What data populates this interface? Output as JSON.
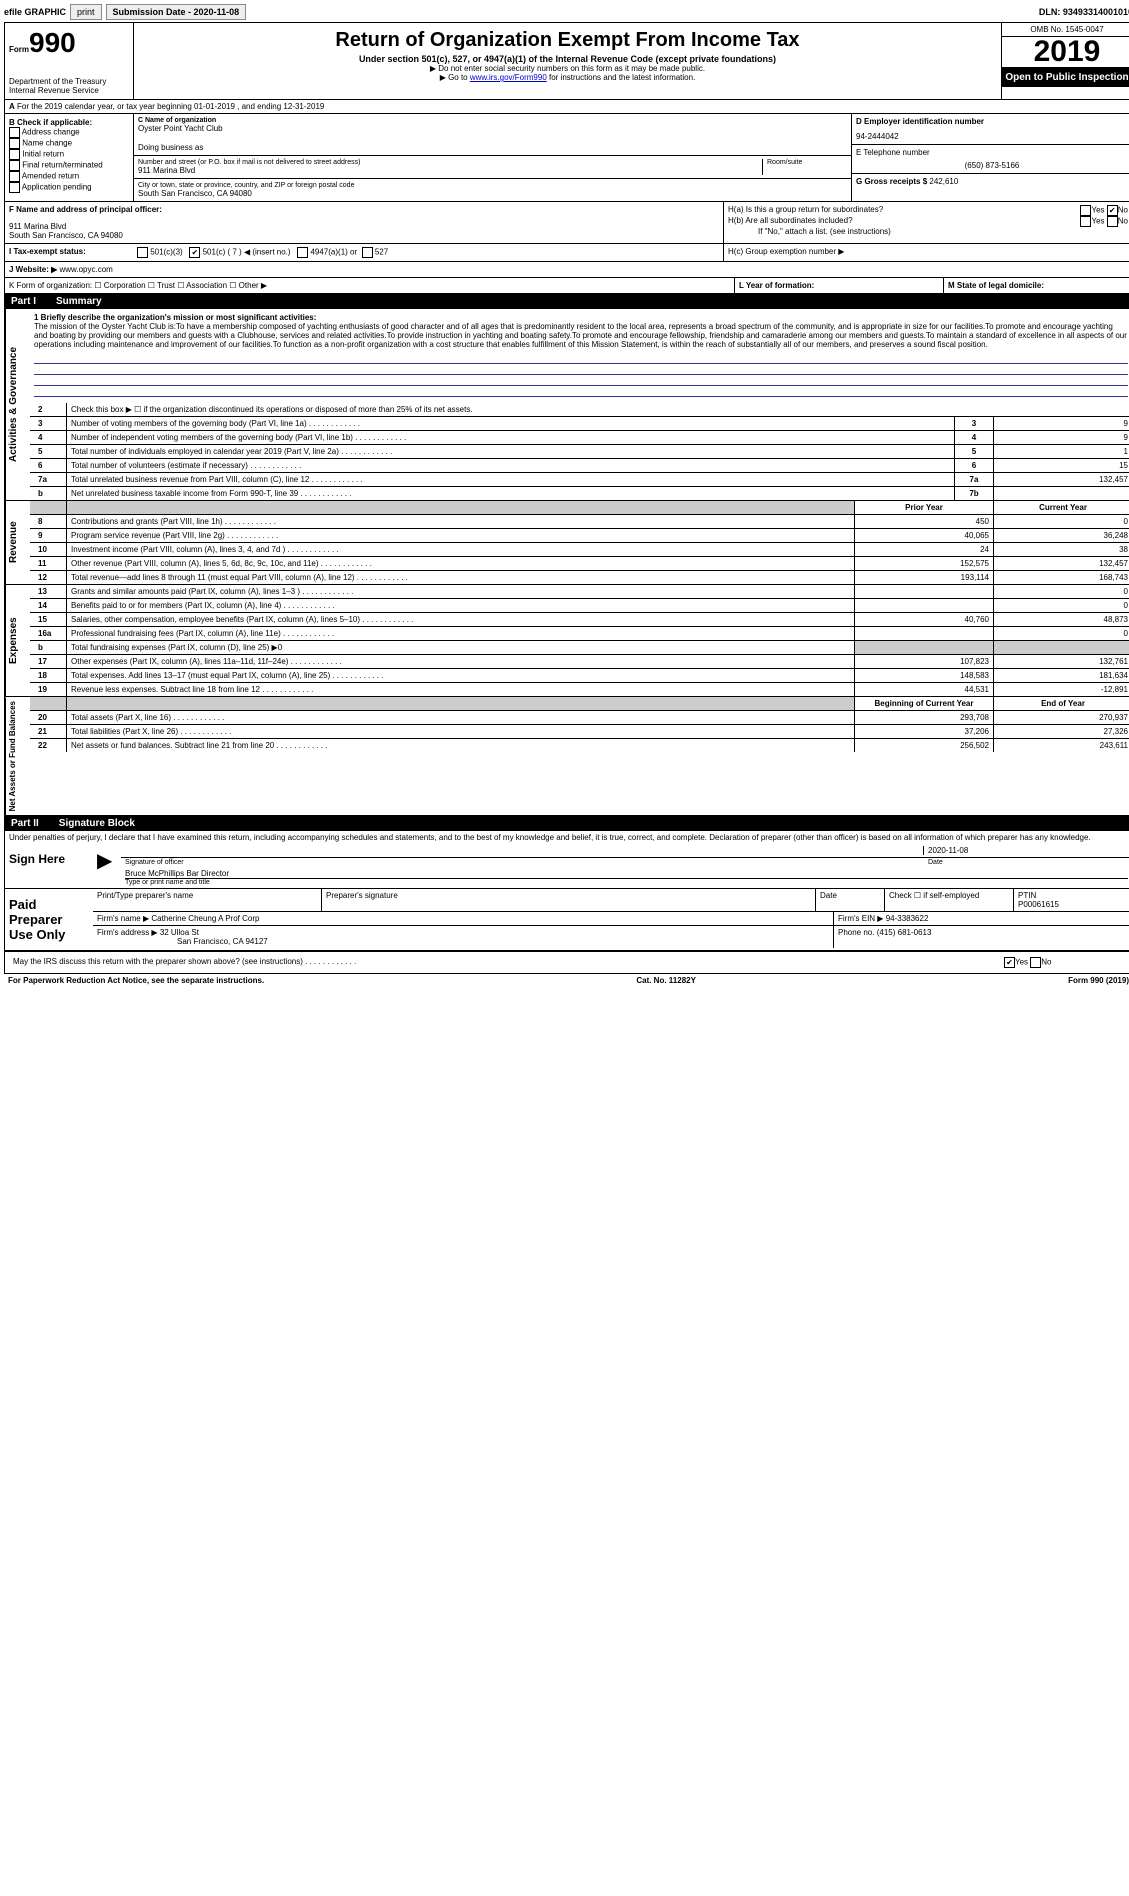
{
  "top": {
    "efile": "efile GRAPHIC",
    "print": "print",
    "sub_label": "Submission Date - 2020-11-08",
    "dln": "DLN: 93493314001010"
  },
  "header": {
    "form_label": "Form",
    "form_num": "990",
    "dept": "Department of the Treasury\nInternal Revenue Service",
    "title": "Return of Organization Exempt From Income Tax",
    "sub1": "Under section 501(c), 527, or 4947(a)(1) of the Internal Revenue Code (except private foundations)",
    "sub2": "▶ Do not enter social security numbers on this form as it may be made public.",
    "sub3_pre": "▶ Go to ",
    "sub3_link": "www.irs.gov/Form990",
    "sub3_post": " for instructions and the latest information.",
    "omb": "OMB No. 1545-0047",
    "year": "2019",
    "open": "Open to Public Inspection"
  },
  "period": "For the 2019 calendar year, or tax year beginning 01-01-2019 , and ending 12-31-2019",
  "checkif": {
    "label": "B Check if applicable:",
    "opts": [
      "Address change",
      "Name change",
      "Initial return",
      "Final return/terminated",
      "Amended return",
      "Application pending"
    ]
  },
  "org": {
    "c_label": "C Name of organization",
    "name": "Oyster Point Yacht Club",
    "dba_label": "Doing business as",
    "addr_label": "Number and street (or P.O. box if mail is not delivered to street address)",
    "room_label": "Room/suite",
    "addr": "911 Marina Blvd",
    "city_label": "City or town, state or province, country, and ZIP or foreign postal code",
    "city": "South San Francisco, CA  94080"
  },
  "right": {
    "d_label": "D Employer identification number",
    "ein": "94-2444042",
    "e_label": "E Telephone number",
    "phone": "(650) 873-5166",
    "g_label": "G Gross receipts $",
    "gross": "242,610"
  },
  "officer": {
    "f_label": "F Name and address of principal officer:",
    "addr1": "911 Marina Blvd",
    "addr2": "South San Francisco, CA  94080"
  },
  "h": {
    "a": "H(a) Is this a group return for subordinates?",
    "b": "H(b) Are all subordinates included?",
    "note": "If \"No,\" attach a list. (see instructions)",
    "c": "H(c) Group exemption number ▶"
  },
  "tax_exempt": {
    "i_label": "I Tax-exempt status:",
    "c3": "501(c)(3)",
    "c": "501(c) ( 7 ) ◀ (insert no.)",
    "a1": "4947(a)(1) or",
    "s527": "527"
  },
  "website": {
    "j": "J Website: ▶",
    "url": "www.opyc.com"
  },
  "k": "K Form of organization:  ☐ Corporation  ☐ Trust  ☐ Association  ☐ Other ▶",
  "l": "L Year of formation:",
  "m": "M State of legal domicile:",
  "part1": {
    "label": "Part I",
    "title": "Summary"
  },
  "mission_label": "1 Briefly describe the organization's mission or most significant activities:",
  "mission": "The mission of the Oyster Yacht Club is:To have a membership composed of yachting enthusiasts of good character and of all ages that is predominantly resident to the local area, represents a broad spectrum of the community, and is appropriate in size for our facilities.To promote and encourage yachting and boating by providing our members and guests with a Clubhouse, services and related activities.To provide instruction in yachting and boating safety.To promote and encourage fellowship, friendship and camaraderie among our members and guests.To maintain a standard of excellence in all aspects of our operations including maintenance and improvement of our facilities.To function as a non-profit organization with a cost structure that enables fulfillment of this Mission Statement, is within the reach of substantially all of our members, and preserves a sound fiscal position.",
  "sections": {
    "gov": "Activities & Governance",
    "rev": "Revenue",
    "exp": "Expenses",
    "net": "Net Assets or Fund Balances"
  },
  "gov_lines": [
    {
      "n": "2",
      "label": "Check this box ▶ ☐ if the organization discontinued its operations or disposed of more than 25% of its net assets."
    },
    {
      "n": "3",
      "label": "Number of voting members of the governing body (Part VI, line 1a)",
      "box": "3",
      "val": "9"
    },
    {
      "n": "4",
      "label": "Number of independent voting members of the governing body (Part VI, line 1b)",
      "box": "4",
      "val": "9"
    },
    {
      "n": "5",
      "label": "Total number of individuals employed in calendar year 2019 (Part V, line 2a)",
      "box": "5",
      "val": "1"
    },
    {
      "n": "6",
      "label": "Total number of volunteers (estimate if necessary)",
      "box": "6",
      "val": "15"
    },
    {
      "n": "7a",
      "label": "Total unrelated business revenue from Part VIII, column (C), line 12",
      "box": "7a",
      "val": "132,457"
    },
    {
      "n": "b",
      "label": "Net unrelated business taxable income from Form 990-T, line 39",
      "box": "7b",
      "val": ""
    }
  ],
  "col_heads": {
    "prior": "Prior Year",
    "current": "Current Year"
  },
  "rev_lines": [
    {
      "n": "8",
      "label": "Contributions and grants (Part VIII, line 1h)",
      "p": "450",
      "c": "0"
    },
    {
      "n": "9",
      "label": "Program service revenue (Part VIII, line 2g)",
      "p": "40,065",
      "c": "36,248"
    },
    {
      "n": "10",
      "label": "Investment income (Part VIII, column (A), lines 3, 4, and 7d )",
      "p": "24",
      "c": "38"
    },
    {
      "n": "11",
      "label": "Other revenue (Part VIII, column (A), lines 5, 6d, 8c, 9c, 10c, and 11e)",
      "p": "152,575",
      "c": "132,457"
    },
    {
      "n": "12",
      "label": "Total revenue—add lines 8 through 11 (must equal Part VIII, column (A), line 12)",
      "p": "193,114",
      "c": "168,743"
    }
  ],
  "exp_lines": [
    {
      "n": "13",
      "label": "Grants and similar amounts paid (Part IX, column (A), lines 1–3 )",
      "p": "",
      "c": "0"
    },
    {
      "n": "14",
      "label": "Benefits paid to or for members (Part IX, column (A), line 4)",
      "p": "",
      "c": "0"
    },
    {
      "n": "15",
      "label": "Salaries, other compensation, employee benefits (Part IX, column (A), lines 5–10)",
      "p": "40,760",
      "c": "48,873"
    },
    {
      "n": "16a",
      "label": "Professional fundraising fees (Part IX, column (A), line 11e)",
      "p": "",
      "c": "0"
    },
    {
      "n": "b",
      "label": "Total fundraising expenses (Part IX, column (D), line 25) ▶0",
      "p": null,
      "c": null
    },
    {
      "n": "17",
      "label": "Other expenses (Part IX, column (A), lines 11a–11d, 11f–24e)",
      "p": "107,823",
      "c": "132,761"
    },
    {
      "n": "18",
      "label": "Total expenses. Add lines 13–17 (must equal Part IX, column (A), line 25)",
      "p": "148,583",
      "c": "181,634"
    },
    {
      "n": "19",
      "label": "Revenue less expenses. Subtract line 18 from line 12",
      "p": "44,531",
      "c": "-12,891"
    }
  ],
  "net_heads": {
    "begin": "Beginning of Current Year",
    "end": "End of Year"
  },
  "net_lines": [
    {
      "n": "20",
      "label": "Total assets (Part X, line 16)",
      "p": "293,708",
      "c": "270,937"
    },
    {
      "n": "21",
      "label": "Total liabilities (Part X, line 26)",
      "p": "37,206",
      "c": "27,326"
    },
    {
      "n": "22",
      "label": "Net assets or fund balances. Subtract line 21 from line 20",
      "p": "256,502",
      "c": "243,611"
    }
  ],
  "part2": {
    "label": "Part II",
    "title": "Signature Block"
  },
  "penalties": "Under penalties of perjury, I declare that I have examined this return, including accompanying schedules and statements, and to the best of my knowledge and belief, it is true, correct, and complete. Declaration of preparer (other than officer) is based on all information of which preparer has any knowledge.",
  "sign": {
    "here": "Sign Here",
    "sig_officer": "Signature of officer",
    "date": "Date",
    "date_val": "2020-11-08",
    "name": "Bruce McPhillips Bar Director",
    "name_label": "Type or print name and title"
  },
  "preparer": {
    "label": "Paid Preparer Use Only",
    "print_label": "Print/Type preparer's name",
    "sig_label": "Preparer's signature",
    "date_label": "Date",
    "check_label": "Check ☐ if self-employed",
    "ptin_label": "PTIN",
    "ptin": "P00061615",
    "firm_name_label": "Firm's name ▶",
    "firm_name": "Catherine Cheung A Prof Corp",
    "firm_ein_label": "Firm's EIN ▶",
    "firm_ein": "94-3383622",
    "firm_addr_label": "Firm's address ▶",
    "firm_addr1": "32 Ulloa St",
    "firm_addr2": "San Francisco, CA  94127",
    "phone_label": "Phone no.",
    "phone": "(415) 681-0613"
  },
  "discuss": "May the IRS discuss this return with the preparer shown above? (see instructions)",
  "footer": {
    "left": "For Paperwork Reduction Act Notice, see the separate instructions.",
    "mid": "Cat. No. 11282Y",
    "right": "Form 990 (2019)"
  }
}
